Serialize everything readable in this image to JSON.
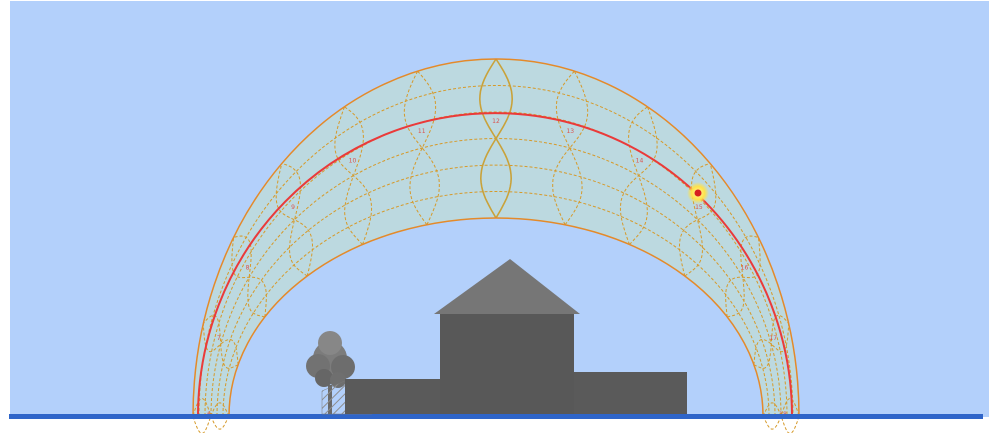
{
  "colors": {
    "sky": "#b3d0fb",
    "band_fill": "#bcd9e0",
    "orange_line": "#e48a2a",
    "dotted_line": "#d69a2a",
    "analemma": "#c9a23a",
    "sun_path": "#ea3a3a",
    "sun_glow": "#ffe24a",
    "sun_core": "#d62020",
    "building": "#5a5a5a",
    "roof": "#737373",
    "ground": "#2f65c9",
    "tree": "#7c7c7c"
  },
  "hour_labels": [
    "6",
    "7",
    "8",
    "9",
    "10",
    "11",
    "12",
    "13",
    "14",
    "15",
    "16",
    "17",
    "18"
  ],
  "icons": {
    "sun": "sun-icon",
    "tree": "tree-icon",
    "house": "house-icon"
  }
}
